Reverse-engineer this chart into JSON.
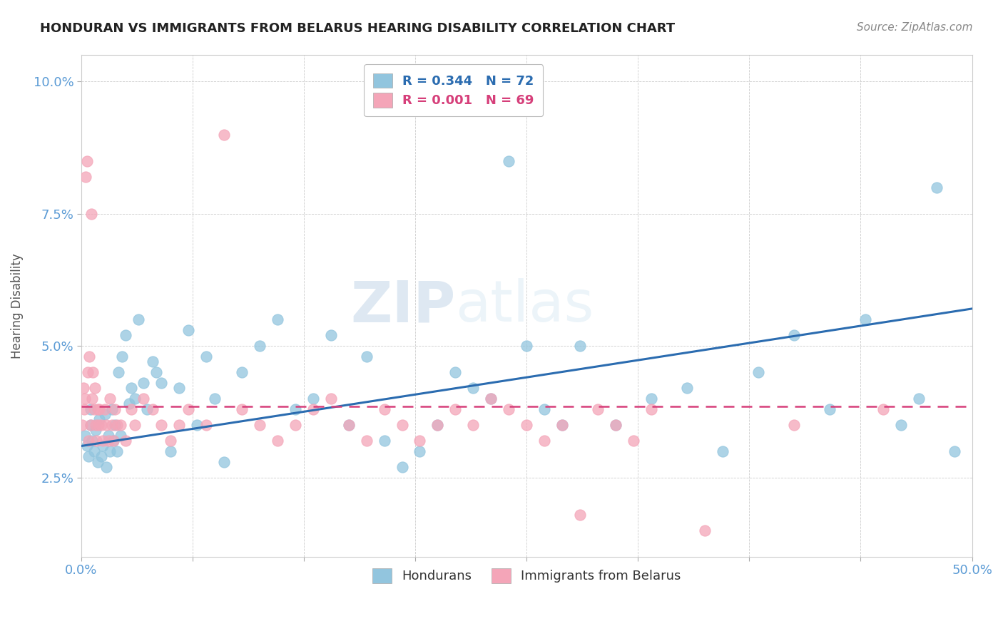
{
  "title": "HONDURAN VS IMMIGRANTS FROM BELARUS HEARING DISABILITY CORRELATION CHART",
  "source": "Source: ZipAtlas.com",
  "ylabel": "Hearing Disability",
  "legend_blue_R": "R = 0.344",
  "legend_blue_N": "N = 72",
  "legend_pink_R": "R = 0.001",
  "legend_pink_N": "N = 69",
  "legend_blue_label": "Hondurans",
  "legend_pink_label": "Immigrants from Belarus",
  "xlim": [
    0.0,
    50.0
  ],
  "ylim": [
    1.0,
    10.5
  ],
  "yticks": [
    2.5,
    5.0,
    7.5,
    10.0
  ],
  "xticks": [
    0.0,
    6.25,
    12.5,
    18.75,
    25.0,
    31.25,
    37.5,
    43.75,
    50.0
  ],
  "blue_color": "#92c5de",
  "pink_color": "#f4a5b8",
  "blue_line_color": "#2b6cb0",
  "pink_line_color": "#d63f7a",
  "background_color": "#ffffff",
  "grid_color": "#cccccc",
  "watermark_zip": "ZIP",
  "watermark_atlas": "atlas",
  "title_color": "#222222",
  "axis_color": "#5b9bd5",
  "blue_x": [
    0.2,
    0.3,
    0.4,
    0.5,
    0.5,
    0.6,
    0.7,
    0.8,
    0.9,
    1.0,
    1.1,
    1.2,
    1.3,
    1.4,
    1.5,
    1.6,
    1.7,
    1.8,
    1.9,
    2.0,
    2.1,
    2.2,
    2.3,
    2.5,
    2.7,
    2.8,
    3.0,
    3.2,
    3.5,
    3.7,
    4.0,
    4.2,
    4.5,
    5.0,
    5.5,
    6.0,
    6.5,
    7.0,
    7.5,
    8.0,
    9.0,
    10.0,
    11.0,
    12.0,
    13.0,
    14.0,
    15.0,
    16.0,
    17.0,
    18.0,
    19.0,
    20.0,
    21.0,
    22.0,
    23.0,
    24.0,
    25.0,
    26.0,
    27.0,
    28.0,
    30.0,
    32.0,
    34.0,
    36.0,
    38.0,
    40.0,
    42.0,
    44.0,
    46.0,
    47.0,
    48.0,
    49.0
  ],
  "blue_y": [
    3.3,
    3.1,
    2.9,
    3.5,
    3.8,
    3.2,
    3.0,
    3.4,
    2.8,
    3.6,
    2.9,
    3.1,
    3.7,
    2.7,
    3.3,
    3.0,
    3.8,
    3.2,
    3.5,
    3.0,
    4.5,
    3.3,
    4.8,
    5.2,
    3.9,
    4.2,
    4.0,
    5.5,
    4.3,
    3.8,
    4.7,
    4.5,
    4.3,
    3.0,
    4.2,
    5.3,
    3.5,
    4.8,
    4.0,
    2.8,
    4.5,
    5.0,
    5.5,
    3.8,
    4.0,
    5.2,
    3.5,
    4.8,
    3.2,
    2.7,
    3.0,
    3.5,
    4.5,
    4.2,
    4.0,
    8.5,
    5.0,
    3.8,
    3.5,
    5.0,
    3.5,
    4.0,
    4.2,
    3.0,
    4.5,
    5.2,
    3.8,
    5.5,
    3.5,
    4.0,
    8.0,
    3.0
  ],
  "pink_x": [
    0.05,
    0.1,
    0.15,
    0.2,
    0.25,
    0.3,
    0.35,
    0.4,
    0.45,
    0.5,
    0.55,
    0.6,
    0.65,
    0.7,
    0.75,
    0.8,
    0.85,
    0.9,
    0.95,
    1.0,
    1.1,
    1.2,
    1.3,
    1.4,
    1.5,
    1.6,
    1.7,
    1.8,
    1.9,
    2.0,
    2.2,
    2.5,
    2.8,
    3.0,
    3.5,
    4.0,
    4.5,
    5.0,
    5.5,
    6.0,
    7.0,
    8.0,
    9.0,
    10.0,
    11.0,
    12.0,
    13.0,
    14.0,
    15.0,
    16.0,
    17.0,
    18.0,
    19.0,
    20.0,
    21.0,
    22.0,
    23.0,
    24.0,
    25.0,
    26.0,
    27.0,
    28.0,
    29.0,
    30.0,
    31.0,
    32.0,
    35.0,
    40.0,
    45.0
  ],
  "pink_y": [
    3.5,
    4.2,
    3.8,
    4.0,
    8.2,
    8.5,
    4.5,
    3.2,
    4.8,
    3.5,
    7.5,
    4.0,
    4.5,
    3.8,
    4.2,
    3.5,
    3.2,
    3.8,
    3.5,
    3.8,
    3.5,
    3.2,
    3.8,
    3.5,
    3.2,
    4.0,
    3.5,
    3.2,
    3.8,
    3.5,
    3.5,
    3.2,
    3.8,
    3.5,
    4.0,
    3.8,
    3.5,
    3.2,
    3.5,
    3.8,
    3.5,
    9.0,
    3.8,
    3.5,
    3.2,
    3.5,
    3.8,
    4.0,
    3.5,
    3.2,
    3.8,
    3.5,
    3.2,
    3.5,
    3.8,
    3.5,
    4.0,
    3.8,
    3.5,
    3.2,
    3.5,
    1.8,
    3.8,
    3.5,
    3.2,
    3.8,
    1.5,
    3.5,
    3.8
  ],
  "blue_trend_x": [
    0.0,
    50.0
  ],
  "blue_trend_y_start": 3.1,
  "blue_trend_y_end": 5.7,
  "pink_trend_y": 3.85,
  "pink_trend_x_start": 0.0,
  "pink_trend_x_end": 50.0
}
